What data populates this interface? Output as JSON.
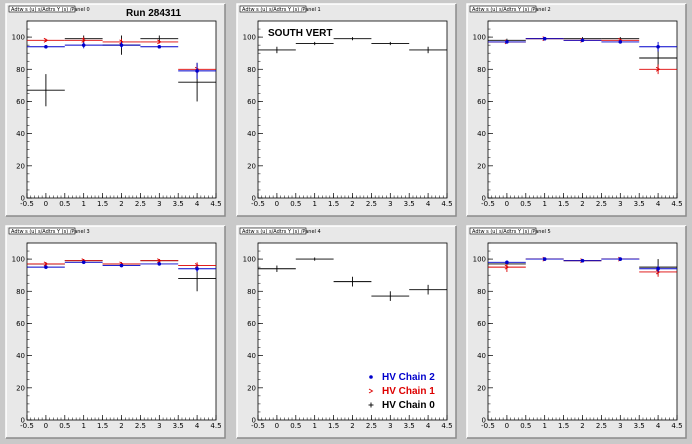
{
  "colors": {
    "background": "#c9c9c9",
    "pad": "#e8e8e8",
    "frame": "#ffffff",
    "chain2": "#0000cc",
    "chain1": "#dd0000",
    "chain0": "#000000"
  },
  "chart_data": [
    {
      "type": "scatter",
      "panel": "top-left",
      "pad_title": "Adtw s (u) s/Adtrs Y (s) /Panel 0",
      "overlay_text": "Run 284311",
      "xlim": [
        -0.5,
        4.5
      ],
      "ylim": [
        0,
        110
      ],
      "xticks": [
        "-0.5",
        "0",
        "0.5",
        "1",
        "1.5",
        "2",
        "2.5",
        "3",
        "3.5",
        "4",
        "4.5"
      ],
      "yticks": [
        "0",
        "20",
        "40",
        "60",
        "80",
        "100"
      ],
      "x": [
        0,
        1,
        2,
        3,
        4
      ],
      "x_err": 0.5,
      "series": [
        {
          "color": "chain0",
          "marker": "plus",
          "values": [
            67,
            99,
            95,
            99,
            72
          ],
          "errors": [
            10,
            2,
            6,
            2,
            12
          ]
        },
        {
          "color": "chain1",
          "marker": "arrow",
          "values": [
            98,
            98,
            97,
            97,
            80
          ],
          "errors": [
            1,
            2,
            2,
            1,
            3
          ]
        },
        {
          "color": "chain2",
          "marker": "diamond",
          "values": [
            94,
            95,
            95,
            94,
            79
          ],
          "errors": [
            1,
            2,
            2,
            1,
            5
          ]
        }
      ]
    },
    {
      "type": "scatter",
      "panel": "top-middle",
      "pad_title": "Adtw s (u) s/Adtrs Y (s) /Panel 1",
      "overlay_text": "SOUTH VERT",
      "xlim": [
        -0.5,
        4.5
      ],
      "ylim": [
        0,
        110
      ],
      "xticks": [
        "-0.5",
        "0",
        "0.5",
        "1",
        "1.5",
        "2",
        "2.5",
        "3",
        "3.5",
        "4",
        "4.5"
      ],
      "yticks": [
        "0",
        "20",
        "40",
        "60",
        "80",
        "100"
      ],
      "x": [
        0,
        1,
        2,
        3,
        4
      ],
      "x_err": 0.5,
      "series": [
        {
          "color": "chain0",
          "marker": "plus",
          "values": [
            92,
            96,
            99,
            96,
            92
          ],
          "errors": [
            2,
            1,
            1,
            1,
            2
          ]
        }
      ]
    },
    {
      "type": "scatter",
      "panel": "top-right",
      "pad_title": "Adtw s (u) s/Adtrs Y (s) /Panel 2",
      "overlay_text": "",
      "xlim": [
        -0.5,
        4.5
      ],
      "ylim": [
        0,
        110
      ],
      "xticks": [
        "-0.5",
        "0",
        "0.5",
        "1",
        "1.5",
        "2",
        "2.5",
        "3",
        "3.5",
        "4",
        "4.5"
      ],
      "yticks": [
        "0",
        "20",
        "40",
        "60",
        "80",
        "100"
      ],
      "x": [
        0,
        1,
        2,
        3,
        4
      ],
      "x_err": 0.5,
      "series": [
        {
          "color": "chain0",
          "marker": "plus",
          "values": [
            98,
            99,
            99,
            99,
            87
          ],
          "errors": [
            1,
            1,
            1,
            1,
            8
          ]
        },
        {
          "color": "chain1",
          "marker": "arrow",
          "values": [
            97,
            99,
            98,
            98,
            80
          ],
          "errors": [
            1,
            1,
            1,
            1,
            3
          ]
        },
        {
          "color": "chain2",
          "marker": "diamond",
          "values": [
            97,
            99,
            98,
            97,
            94
          ],
          "errors": [
            1,
            1,
            1,
            1,
            3
          ]
        }
      ]
    },
    {
      "type": "scatter",
      "panel": "bottom-left",
      "pad_title": "Adtw s (u) s/Adtrs Y (s) /Panel 3",
      "overlay_text": "",
      "xlim": [
        -0.5,
        4.5
      ],
      "ylim": [
        0,
        110
      ],
      "xticks": [
        "-0.5",
        "0",
        "0.5",
        "1",
        "1.5",
        "2",
        "2.5",
        "3",
        "3.5",
        "4",
        "4.5"
      ],
      "yticks": [
        "0",
        "20",
        "40",
        "60",
        "80",
        "100"
      ],
      "x": [
        0,
        1,
        2,
        3,
        4
      ],
      "x_err": 0.5,
      "series": [
        {
          "color": "chain0",
          "marker": "plus",
          "values": [
            97,
            99,
            97,
            99,
            88
          ],
          "errors": [
            1,
            1,
            1,
            1,
            8
          ]
        },
        {
          "color": "chain1",
          "marker": "arrow",
          "values": [
            97,
            99,
            97,
            99,
            96
          ],
          "errors": [
            1,
            1,
            1,
            1,
            2
          ]
        },
        {
          "color": "chain2",
          "marker": "diamond",
          "values": [
            95,
            98,
            96,
            97,
            94
          ],
          "errors": [
            1,
            1,
            1,
            1,
            2
          ]
        }
      ]
    },
    {
      "type": "scatter",
      "panel": "bottom-middle",
      "pad_title": "Adtw s (u) s/Adtrs Y (s) /Panel 4",
      "overlay_text": "",
      "xlim": [
        -0.5,
        4.5
      ],
      "ylim": [
        0,
        110
      ],
      "xticks": [
        "-0.5",
        "0",
        "0.5",
        "1",
        "1.5",
        "2",
        "2.5",
        "3",
        "3.5",
        "4",
        "4.5"
      ],
      "yticks": [
        "0",
        "20",
        "40",
        "60",
        "80",
        "100"
      ],
      "x": [
        0,
        1,
        2,
        3,
        4
      ],
      "x_err": 0.5,
      "series": [
        {
          "color": "chain0",
          "marker": "plus",
          "values": [
            94,
            100,
            86,
            77,
            81
          ],
          "errors": [
            2,
            1,
            3,
            3,
            3
          ]
        }
      ],
      "legend": {
        "placement": "bottom-right",
        "entries": [
          {
            "label": "HV Chain 2",
            "color": "chain2",
            "marker": "diamond"
          },
          {
            "label": "HV Chain 1",
            "color": "chain1",
            "marker": "arrow"
          },
          {
            "label": "HV Chain 0",
            "color": "chain0",
            "marker": "plus"
          }
        ]
      }
    },
    {
      "type": "scatter",
      "panel": "bottom-right",
      "pad_title": "Adtw s (u) s/Adtrs Y (s) /Panel 5",
      "overlay_text": "",
      "xlim": [
        -0.5,
        4.5
      ],
      "ylim": [
        0,
        110
      ],
      "xticks": [
        "-0.5",
        "0",
        "0.5",
        "1",
        "1.5",
        "2",
        "2.5",
        "3",
        "3.5",
        "4",
        "4.5"
      ],
      "yticks": [
        "0",
        "20",
        "40",
        "60",
        "80",
        "100"
      ],
      "x": [
        0,
        1,
        2,
        3,
        4
      ],
      "x_err": 0.5,
      "series": [
        {
          "color": "chain0",
          "marker": "plus",
          "values": [
            97,
            100,
            99,
            100,
            95
          ],
          "errors": [
            1,
            1,
            1,
            1,
            5
          ]
        },
        {
          "color": "chain1",
          "marker": "arrow",
          "values": [
            95,
            100,
            99,
            100,
            92
          ],
          "errors": [
            3,
            1,
            1,
            1,
            3
          ]
        },
        {
          "color": "chain2",
          "marker": "diamond",
          "values": [
            98,
            100,
            99,
            100,
            94
          ],
          "errors": [
            1,
            1,
            1,
            1,
            2
          ]
        }
      ]
    }
  ]
}
